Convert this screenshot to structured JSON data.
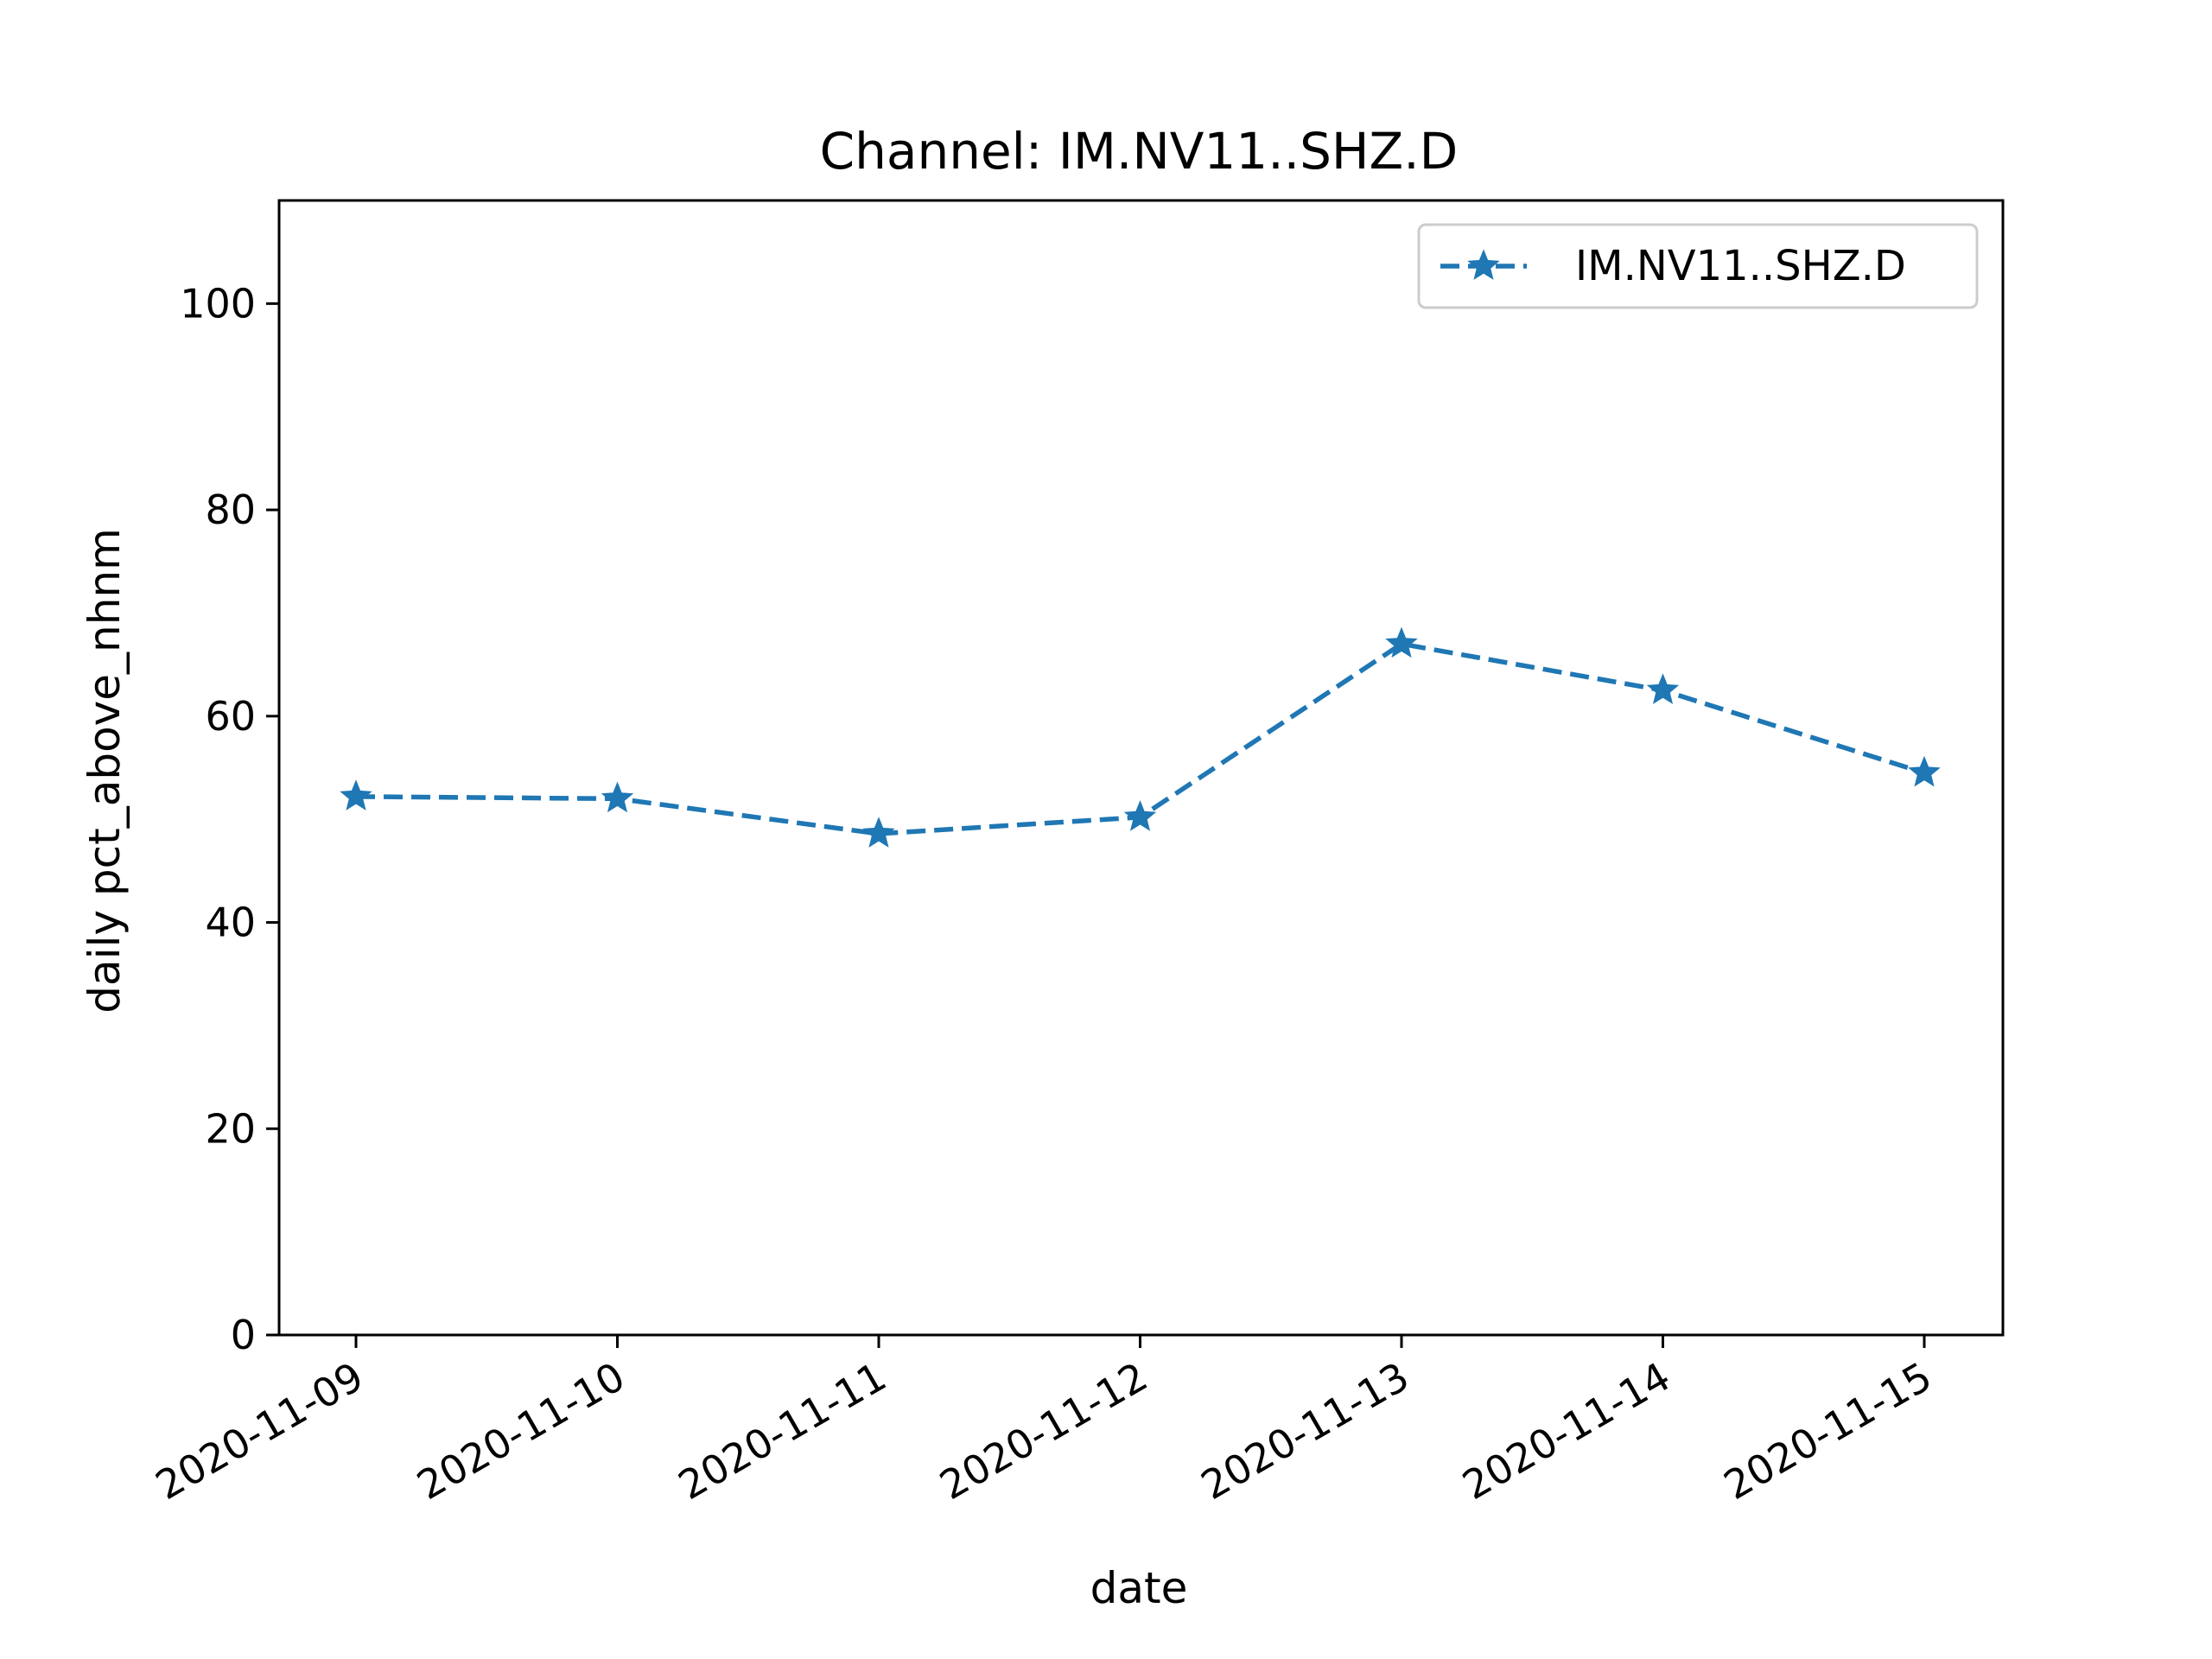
{
  "chart_data": {
    "type": "line",
    "title": "Channel: IM.NV11..SHZ.D",
    "xlabel": "date",
    "ylabel": "daily pct_above_nhnm",
    "categories": [
      "2020-11-09",
      "2020-11-10",
      "2020-11-11",
      "2020-11-12",
      "2020-11-13",
      "2020-11-14",
      "2020-11-15"
    ],
    "series": [
      {
        "name": "IM.NV11..SHZ.D",
        "values": [
          52.2,
          52.0,
          48.6,
          50.2,
          67.0,
          62.5,
          54.5
        ],
        "color": "#1f77b4",
        "line_style": "dashed",
        "marker": "star"
      }
    ],
    "ylim": [
      0,
      110
    ],
    "yticks": [
      0,
      20,
      40,
      60,
      80,
      100
    ],
    "grid": false,
    "legend_position": "top-right"
  }
}
